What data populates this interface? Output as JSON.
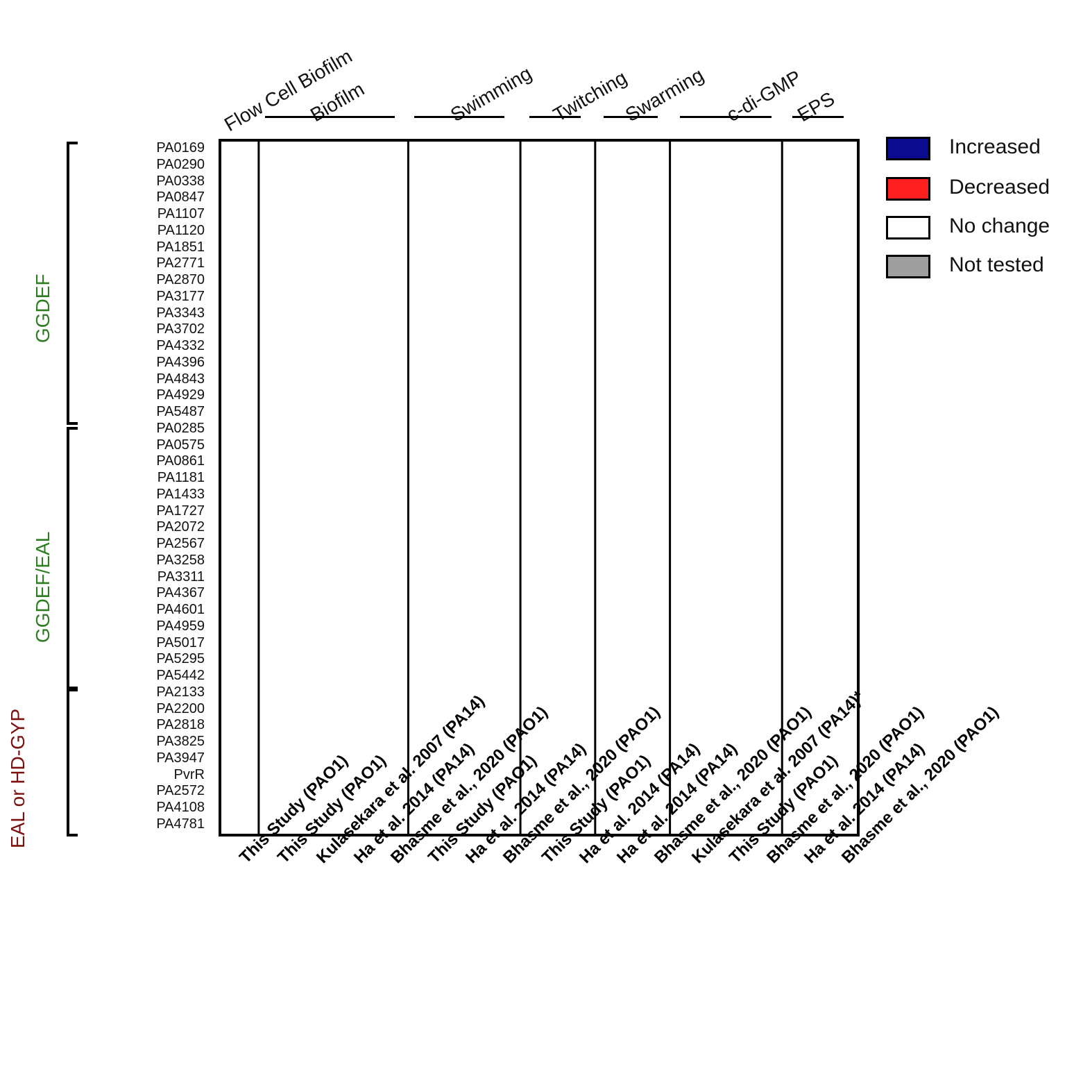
{
  "chart_data": {
    "type": "heatmap",
    "title": "",
    "rows": [
      "PA0169",
      "PA0290",
      "PA0338",
      "PA0847",
      "PA1107",
      "PA1120",
      "PA1851",
      "PA2771",
      "PA2870",
      "PA3177",
      "PA3343",
      "PA3702",
      "PA4332",
      "PA4396",
      "PA4843",
      "PA4929",
      "PA5487",
      "PA0285",
      "PA0575",
      "PA0861",
      "PA1181",
      "PA1433",
      "PA1727",
      "PA2072",
      "PA2567",
      "PA3258",
      "PA3311",
      "PA4367",
      "PA4601",
      "PA4959",
      "PA5017",
      "PA5295",
      "PA5442",
      "PA2133",
      "PA2200",
      "PA2818",
      "PA3825",
      "PA3947",
      "PvrR",
      "PA2572",
      "PA4108",
      "PA4781"
    ],
    "columns": [
      "This Study (PAO1)",
      "This Study (PAO1)",
      "Kulasekara et al. 2007 (PA14)",
      "Ha et al.  2014 (PA14)",
      "Bhasme et al.,  2020 (PAO1)",
      "This Study (PAO1)",
      "Ha et al.  2014 (PA14)",
      "Bhasme et al.,  2020 (PAO1)",
      "This Study (PAO1)",
      "Ha et al.  2014 (PA14)",
      "Ha et al.  2014 (PA14)",
      "Bhasme et al.,  2020 (PAO1)",
      "Kulasekara et al. 2007 (PA14)*",
      "This Study (PAO1)",
      "Bhasme et al.,  2020 (PAO1)",
      "Ha et al.  2014 (PA14)",
      "Bhasme et al.,  2020 (PAO1)"
    ],
    "groups": [
      "Flow Cell Biofilm",
      "Biofilm",
      "Swimming",
      "Twitching",
      "Swarming",
      "c-di-GMP",
      "EPS"
    ],
    "legend": [
      {
        "label": "Increased",
        "color": "#0b0b8f"
      },
      {
        "label": "Decreased",
        "color": "#ff1f1f"
      },
      {
        "label": "No change",
        "color": "#ffffff"
      },
      {
        "label": "Not tested",
        "color": "#9e9e9e"
      }
    ],
    "row_groups": [
      "GGDEF",
      "GGDEF/EAL",
      "EAL or HD-GYP"
    ]
  }
}
